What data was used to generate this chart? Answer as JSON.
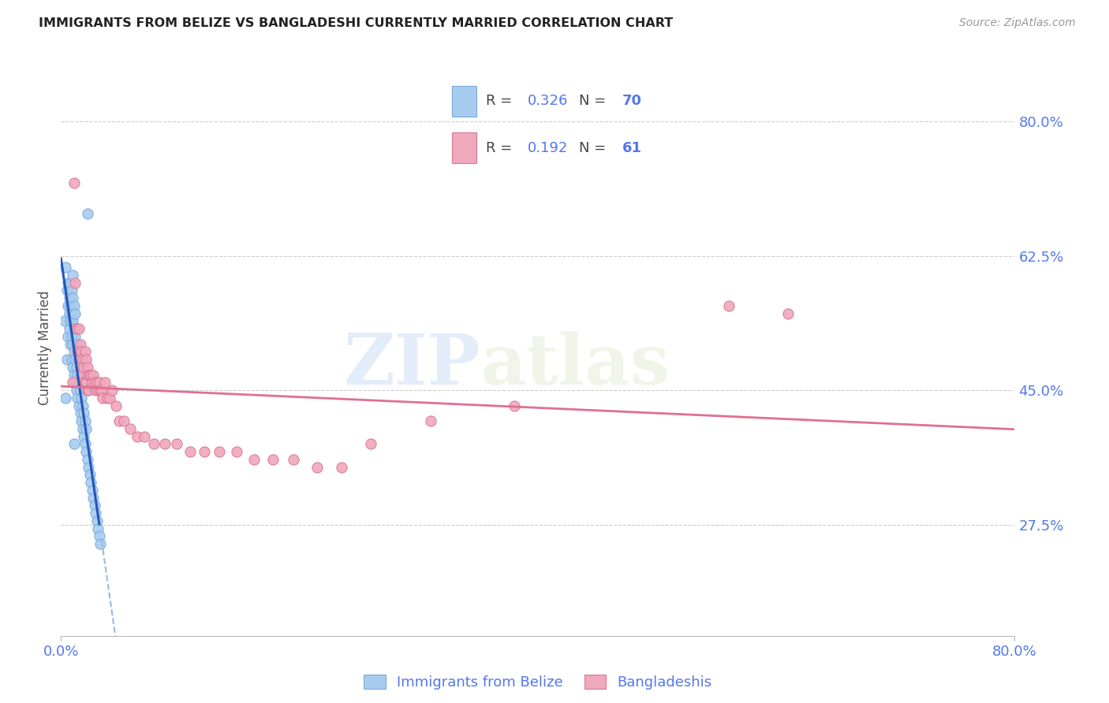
{
  "title": "IMMIGRANTS FROM BELIZE VS BANGLADESHI CURRENTLY MARRIED CORRELATION CHART",
  "source": "Source: ZipAtlas.com",
  "ylabel": "Currently Married",
  "series1_label": "Immigrants from Belize",
  "series1_R": "0.326",
  "series1_N": "70",
  "series1_color": "#a8ccf0",
  "series1_edge": "#7aaad8",
  "series2_label": "Bangladeshis",
  "series2_R": "0.192",
  "series2_N": "61",
  "series2_color": "#f0a8bc",
  "series2_edge": "#d87898",
  "trendline1_solid_color": "#2255bb",
  "trendline1_dash_color": "#99bbdd",
  "trendline2_color": "#e07090",
  "xlim": [
    0.0,
    0.8
  ],
  "ylim": [
    0.13,
    0.88
  ],
  "ytick_vals": [
    0.275,
    0.45,
    0.625,
    0.8
  ],
  "ytick_labels": [
    "27.5%",
    "45.0%",
    "62.5%",
    "80.0%"
  ],
  "axis_color": "#5577ee",
  "watermark_color": "#d5e5f8",
  "grid_color": "#cccccc",
  "title_color": "#222222",
  "s1_x": [
    0.003,
    0.004,
    0.004,
    0.005,
    0.005,
    0.006,
    0.006,
    0.006,
    0.007,
    0.007,
    0.007,
    0.008,
    0.008,
    0.008,
    0.008,
    0.009,
    0.009,
    0.009,
    0.009,
    0.01,
    0.01,
    0.01,
    0.01,
    0.01,
    0.011,
    0.011,
    0.011,
    0.011,
    0.012,
    0.012,
    0.012,
    0.012,
    0.013,
    0.013,
    0.013,
    0.014,
    0.014,
    0.014,
    0.015,
    0.015,
    0.015,
    0.016,
    0.016,
    0.016,
    0.017,
    0.017,
    0.017,
    0.018,
    0.018,
    0.018,
    0.019,
    0.019,
    0.02,
    0.02,
    0.021,
    0.021,
    0.022,
    0.023,
    0.024,
    0.025,
    0.026,
    0.027,
    0.028,
    0.029,
    0.03,
    0.031,
    0.032,
    0.033,
    0.022,
    0.011
  ],
  "s1_y": [
    0.54,
    0.61,
    0.44,
    0.58,
    0.49,
    0.56,
    0.52,
    0.59,
    0.55,
    0.53,
    0.57,
    0.51,
    0.54,
    0.56,
    0.59,
    0.49,
    0.52,
    0.55,
    0.58,
    0.48,
    0.51,
    0.54,
    0.57,
    0.6,
    0.47,
    0.5,
    0.53,
    0.56,
    0.46,
    0.49,
    0.52,
    0.55,
    0.45,
    0.48,
    0.51,
    0.44,
    0.47,
    0.5,
    0.43,
    0.46,
    0.49,
    0.42,
    0.45,
    0.48,
    0.41,
    0.44,
    0.47,
    0.4,
    0.43,
    0.46,
    0.39,
    0.42,
    0.38,
    0.41,
    0.37,
    0.4,
    0.36,
    0.35,
    0.34,
    0.33,
    0.32,
    0.31,
    0.3,
    0.29,
    0.28,
    0.27,
    0.26,
    0.25,
    0.68,
    0.38
  ],
  "s2_x": [
    0.01,
    0.011,
    0.012,
    0.013,
    0.014,
    0.015,
    0.015,
    0.016,
    0.016,
    0.017,
    0.017,
    0.018,
    0.018,
    0.019,
    0.02,
    0.02,
    0.021,
    0.021,
    0.022,
    0.022,
    0.023,
    0.023,
    0.024,
    0.025,
    0.026,
    0.027,
    0.028,
    0.029,
    0.03,
    0.031,
    0.032,
    0.033,
    0.034,
    0.035,
    0.037,
    0.039,
    0.041,
    0.043,
    0.046,
    0.049,
    0.053,
    0.058,
    0.064,
    0.07,
    0.078,
    0.087,
    0.097,
    0.108,
    0.12,
    0.133,
    0.147,
    0.162,
    0.178,
    0.195,
    0.215,
    0.235,
    0.26,
    0.31,
    0.38,
    0.56,
    0.61
  ],
  "s2_y": [
    0.46,
    0.72,
    0.59,
    0.53,
    0.5,
    0.53,
    0.49,
    0.51,
    0.48,
    0.5,
    0.47,
    0.49,
    0.46,
    0.48,
    0.5,
    0.46,
    0.49,
    0.46,
    0.48,
    0.45,
    0.47,
    0.45,
    0.47,
    0.47,
    0.46,
    0.47,
    0.46,
    0.45,
    0.46,
    0.45,
    0.46,
    0.45,
    0.45,
    0.44,
    0.46,
    0.44,
    0.44,
    0.45,
    0.43,
    0.41,
    0.41,
    0.4,
    0.39,
    0.39,
    0.38,
    0.38,
    0.38,
    0.37,
    0.37,
    0.37,
    0.37,
    0.36,
    0.36,
    0.36,
    0.35,
    0.35,
    0.38,
    0.41,
    0.43,
    0.56,
    0.55
  ]
}
